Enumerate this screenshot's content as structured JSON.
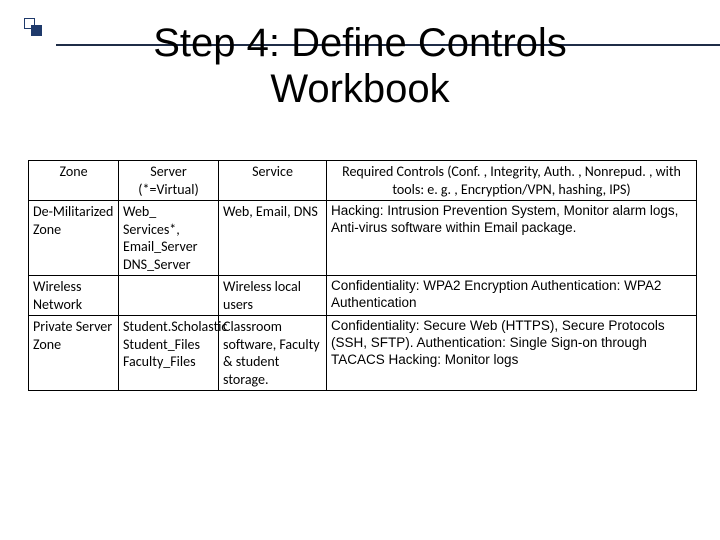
{
  "title_line1": "Step 4: Define Controls",
  "title_line2": "Workbook",
  "table": {
    "headers": {
      "zone": "Zone",
      "server": "Server (*=Virtual)",
      "service": "Service",
      "controls": "Required Controls\n(Conf. , Integrity, Auth. , Nonrepud. , with tools: e. g. , Encryption/VPN, hashing, IPS)"
    },
    "rows": [
      {
        "zone": "De-Militarized Zone",
        "server": "Web_ Services*, Email_Server DNS_Server",
        "service": "Web, Email, DNS",
        "controls": "Hacking: Intrusion Prevention System, Monitor alarm logs, Anti-virus software within Email package."
      },
      {
        "zone": "Wireless Network",
        "server": "",
        "service": "Wireless local users",
        "controls": "Confidentiality: WPA2 Encryption\nAuthentication: WPA2 Authentication"
      },
      {
        "zone": "Private Server Zone",
        "server": "Student.Scholastic Student_Files Faculty_Files",
        "service": "Classroom software, Faculty & student storage.",
        "controls": "Confidentiality: Secure Web (HTTPS), Secure Protocols (SSH, SFTP).\nAuthentication: Single Sign-on through TACACS\nHacking: Monitor logs"
      }
    ]
  }
}
